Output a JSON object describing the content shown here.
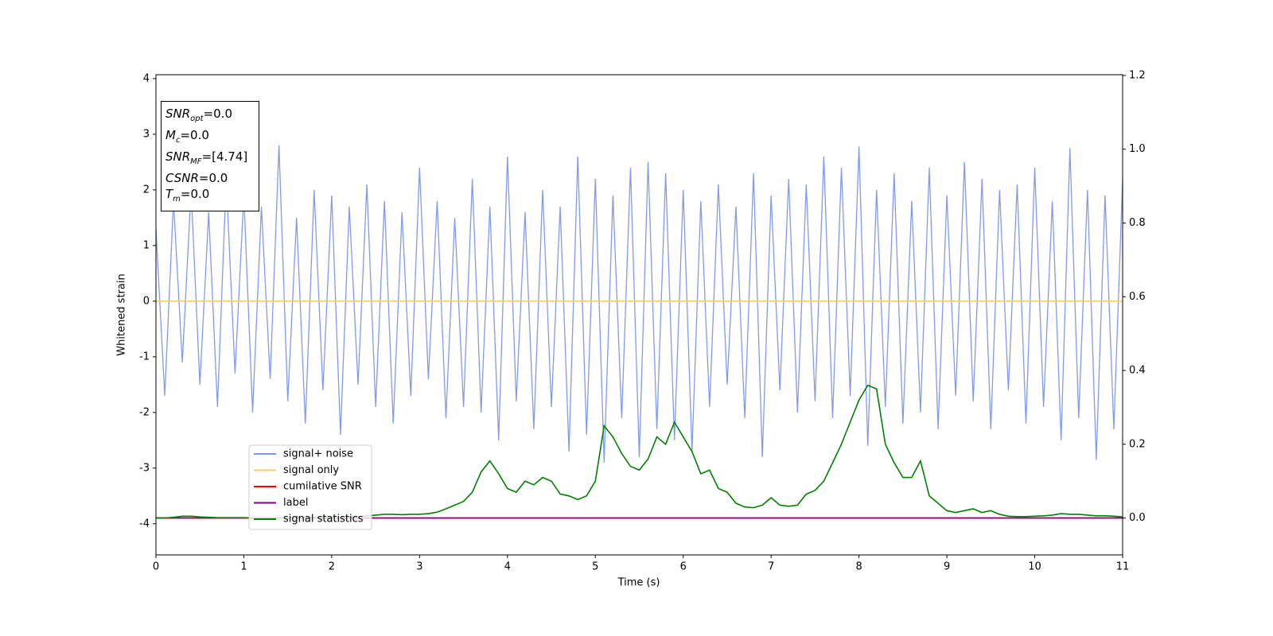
{
  "chart_data": {
    "type": "line",
    "x_label": "Time (s)",
    "y_label": "Whitened strain",
    "x": [
      0,
      0.1,
      0.2,
      0.3,
      0.4,
      0.5,
      0.6,
      0.7,
      0.8,
      0.9,
      1,
      1.1,
      1.2,
      1.3,
      1.4,
      1.5,
      1.6,
      1.7,
      1.8,
      1.9,
      2,
      2.1,
      2.2,
      2.3,
      2.4,
      2.5,
      2.6,
      2.7,
      2.8,
      2.9,
      3,
      3.1,
      3.2,
      3.3,
      3.4,
      3.5,
      3.6,
      3.7,
      3.8,
      3.9,
      4,
      4.1,
      4.2,
      4.3,
      4.4,
      4.5,
      4.6,
      4.7,
      4.8,
      4.9,
      5,
      5.1,
      5.2,
      5.3,
      5.4,
      5.5,
      5.6,
      5.7,
      5.8,
      5.9,
      6,
      6.1,
      6.2,
      6.3,
      6.4,
      6.5,
      6.6,
      6.7,
      6.8,
      6.9,
      7,
      7.1,
      7.2,
      7.3,
      7.4,
      7.5,
      7.6,
      7.7,
      7.8,
      7.9,
      8,
      8.1,
      8.2,
      8.3,
      8.4,
      8.5,
      8.6,
      8.7,
      8.8,
      8.9,
      9,
      9.1,
      9.2,
      9.3,
      9.4,
      9.5,
      9.6,
      9.7,
      9.8,
      9.9,
      10,
      10.1,
      10.2,
      10.3,
      10.4,
      10.5,
      10.6,
      10.7,
      10.8,
      10.9,
      11
    ],
    "series": [
      {
        "name": "signal+ noise",
        "color": "#7b96e8",
        "values": [
          1.3,
          -1.7,
          1.8,
          -1.1,
          2.0,
          -1.5,
          1.6,
          -1.9,
          2.2,
          -1.3,
          1.9,
          -2.0,
          1.7,
          -1.4,
          2.8,
          -1.8,
          1.5,
          -2.2,
          2.0,
          -1.6,
          1.9,
          -2.4,
          1.7,
          -1.5,
          2.1,
          -1.9,
          1.8,
          -2.2,
          1.6,
          -1.7,
          2.4,
          -1.4,
          1.8,
          -2.1,
          1.5,
          -1.9,
          2.2,
          -2.0,
          1.7,
          -2.5,
          2.6,
          -1.8,
          1.6,
          -2.3,
          2.0,
          -1.9,
          1.7,
          -2.7,
          2.6,
          -2.4,
          2.2,
          -2.9,
          1.9,
          -2.1,
          2.4,
          -2.8,
          2.5,
          -2.3,
          2.3,
          -2.5,
          2.0,
          -2.7,
          1.8,
          -1.9,
          2.1,
          -1.5,
          1.7,
          -2.1,
          2.3,
          -2.8,
          1.9,
          -1.6,
          2.2,
          -2.0,
          2.1,
          -1.8,
          2.6,
          -2.1,
          2.4,
          -1.7,
          2.78,
          -2.6,
          2.0,
          -1.9,
          2.3,
          -2.2,
          1.8,
          -2.0,
          2.4,
          -2.3,
          1.9,
          -1.7,
          2.5,
          -1.8,
          2.2,
          -2.3,
          2.0,
          -1.6,
          2.1,
          -2.2,
          2.4,
          -1.9,
          1.8,
          -2.5,
          2.75,
          -2.1,
          2.0,
          -2.85,
          1.9,
          -2.3,
          2.2
        ]
      },
      {
        "name": "signal only",
        "color": "#ffc966",
        "x": [
          0,
          11
        ],
        "values": [
          0,
          0
        ]
      },
      {
        "name": "cumilative SNR",
        "color": "#ff0000",
        "axis": "y2",
        "x": [
          0,
          11
        ],
        "values": [
          0,
          0
        ]
      },
      {
        "name": "label",
        "color": "#800080",
        "axis": "y2",
        "x": [
          0,
          11
        ],
        "values": [
          0,
          0
        ]
      },
      {
        "name": "signal statistics",
        "color": "#008000",
        "axis": "y2",
        "values": [
          0,
          0,
          0.002,
          0.005,
          0.005,
          0.003,
          0.002,
          0.001,
          0.001,
          0.001,
          0.001,
          0,
          0,
          0,
          0,
          0,
          0.001,
          0.002,
          0.002,
          0.001,
          0.001,
          0.002,
          0.003,
          0.004,
          0.006,
          0.008,
          0.01,
          0.01,
          0.009,
          0.01,
          0.01,
          0.012,
          0.016,
          0.025,
          0.035,
          0.045,
          0.07,
          0.125,
          0.155,
          0.12,
          0.08,
          0.07,
          0.1,
          0.09,
          0.11,
          0.1,
          0.065,
          0.06,
          0.05,
          0.06,
          0.1,
          0.25,
          0.22,
          0.175,
          0.14,
          0.13,
          0.16,
          0.22,
          0.2,
          0.26,
          0.22,
          0.18,
          0.12,
          0.13,
          0.08,
          0.07,
          0.04,
          0.03,
          0.028,
          0.035,
          0.055,
          0.035,
          0.032,
          0.035,
          0.065,
          0.075,
          0.1,
          0.15,
          0.2,
          0.26,
          0.32,
          0.36,
          0.35,
          0.2,
          0.15,
          0.11,
          0.11,
          0.155,
          0.06,
          0.04,
          0.02,
          0.015,
          0.02,
          0.025,
          0.015,
          0.02,
          0.01,
          0.005,
          0.004,
          0.004,
          0.005,
          0.006,
          0.008,
          0.012,
          0.01,
          0.01,
          0.008,
          0.006,
          0.006,
          0.005,
          0.003
        ]
      }
    ],
    "xlim": [
      0,
      11
    ],
    "xticks": [
      0,
      1,
      2,
      3,
      4,
      5,
      6,
      7,
      8,
      9,
      10,
      11
    ],
    "ylim": [
      -4.56,
      4.07
    ],
    "yticks": [
      -4,
      -3,
      -2,
      -1,
      0,
      1,
      2,
      3,
      4
    ],
    "y2lim": [
      -0.1,
      1.202
    ],
    "y2ticks": [
      {
        "value": 0,
        "label": "0.0"
      },
      {
        "value": 0.2,
        "label": "0.2"
      },
      {
        "value": 0.4,
        "label": "0.4"
      },
      {
        "value": 0.6,
        "label": "0.6"
      },
      {
        "value": 0.8,
        "label": "0.8"
      },
      {
        "value": 1.0,
        "label": "1.0"
      },
      {
        "value": 1.2,
        "label": "1.2"
      }
    ],
    "legend": "lower left",
    "annotation": [
      {
        "main": "SNR",
        "sub": "opt",
        "rest": "=0.0"
      },
      {
        "main": "M",
        "sub": "c",
        "rest": "=0.0"
      },
      {
        "main": "SNR",
        "sub": "MF",
        "rest": "=[4.74]"
      },
      {
        "main": "CSNR",
        "sub": null,
        "rest": "=0.0"
      },
      {
        "main": "T",
        "sub": "m",
        "rest": "=0.0"
      }
    ]
  }
}
